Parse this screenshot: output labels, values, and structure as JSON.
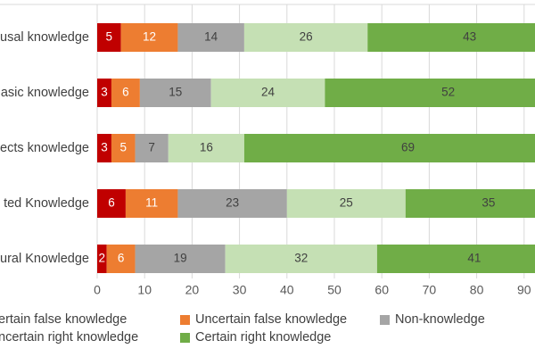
{
  "chart_data": {
    "type": "bar",
    "orientation": "horizontal",
    "stacked": true,
    "categories": [
      "usal knowledge",
      "asic knowledge",
      "ects knowledge",
      "ted Knowledge",
      "ural Knowledge"
    ],
    "series": [
      {
        "name": "ertain false knowledge",
        "color": "#c00000",
        "label_color": "#ffffff",
        "values": [
          5,
          3,
          3,
          6,
          2
        ]
      },
      {
        "name": "Uncertain false knowledge",
        "color": "#ed7d31",
        "label_color": "#ffffff",
        "values": [
          12,
          6,
          5,
          11,
          6
        ]
      },
      {
        "name": "Non-knowledge",
        "color": "#a5a5a5",
        "label_color": "#404040",
        "values": [
          14,
          15,
          7,
          23,
          19
        ]
      },
      {
        "name": "ncertain right knowledge",
        "color": "#c5e0b4",
        "label_color": "#404040",
        "values": [
          26,
          24,
          16,
          25,
          32
        ]
      },
      {
        "name": "Certain right knowledge",
        "color": "#70ad47",
        "label_color": "#404040",
        "values": [
          43,
          52,
          69,
          35,
          41
        ]
      }
    ],
    "xticks": [
      0,
      10,
      20,
      30,
      40,
      50,
      60,
      70,
      80,
      90
    ],
    "xlim": [
      0,
      100
    ],
    "grid": true,
    "legend_position": "bottom"
  }
}
